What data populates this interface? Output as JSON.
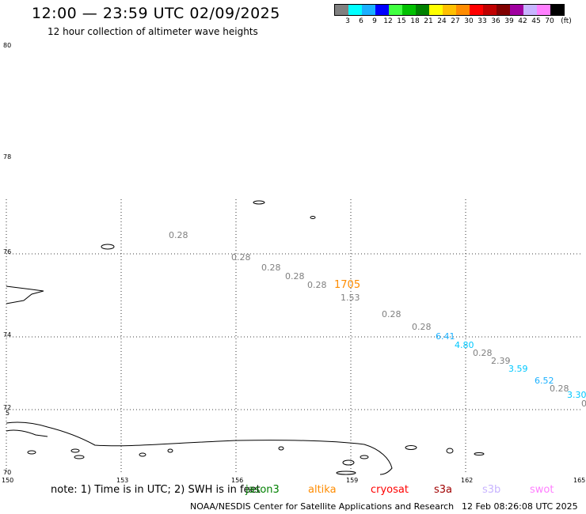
{
  "header": {
    "title": "12:00 — 23:59 UTC 02/09/2025",
    "subtitle": "12 hour collection of altimeter wave heights"
  },
  "scale": {
    "unit": "(ft)",
    "colors": [
      "#808080",
      "#00ffff",
      "#1ab0ff",
      "#0000ff",
      "#40ff40",
      "#00c000",
      "#008000",
      "#ffff00",
      "#ffc000",
      "#ff8c00",
      "#ff0000",
      "#c00000",
      "#800000",
      "#a000a0",
      "#c8b4ff",
      "#ff80ff",
      "#000000"
    ],
    "labels": [
      "3",
      "6",
      "9",
      "12",
      "15",
      "18",
      "21",
      "24",
      "27",
      "30",
      "33",
      "36",
      "39",
      "42",
      "45",
      "70"
    ]
  },
  "axes": {
    "lat_labels": [
      "80",
      "78",
      "76",
      "74",
      "72",
      "70"
    ],
    "lon_labels": [
      "150",
      "153",
      "156",
      "159",
      "162",
      "165"
    ]
  },
  "observations": [
    {
      "text": "0.28",
      "color": "#808080"
    },
    {
      "text": "0.28",
      "color": "#808080"
    },
    {
      "text": "0.28",
      "color": "#808080"
    },
    {
      "text": "0.28",
      "color": "#808080"
    },
    {
      "text": "0.28",
      "color": "#808080"
    },
    {
      "text": "1705",
      "color": "#ff8c00"
    },
    {
      "text": "1.53",
      "color": "#808080"
    },
    {
      "text": "0.28",
      "color": "#808080"
    },
    {
      "text": "0.28",
      "color": "#808080"
    },
    {
      "text": "6.41",
      "color": "#1ab0ff"
    },
    {
      "text": "4.80",
      "color": "#00c8ff"
    },
    {
      "text": "0.28",
      "color": "#808080"
    },
    {
      "text": "2.39",
      "color": "#808080"
    },
    {
      "text": "3.59",
      "color": "#00c8ff"
    },
    {
      "text": "6.52",
      "color": "#1ab0ff"
    },
    {
      "text": "0.28",
      "color": "#808080"
    },
    {
      "text": "3.30",
      "color": "#00c8ff"
    },
    {
      "text": "0",
      "color": "#808080"
    }
  ],
  "edge_marks": {
    "left_small": "5"
  },
  "footer": {
    "note": "note:  1) Time is in UTC;  2) SWH is in feet",
    "satellites": [
      {
        "name": "jason3",
        "color": "#008000"
      },
      {
        "name": "altika",
        "color": "#ff8c00"
      },
      {
        "name": "cryosat",
        "color": "#ff0000"
      },
      {
        "name": "s3a",
        "color": "#a00000"
      },
      {
        "name": "s3b",
        "color": "#c8b4ff"
      },
      {
        "name": "swot",
        "color": "#ff80ff"
      }
    ],
    "credit": "NOAA/NESDIS Center for Satellite Applications and Research",
    "timestamp": "12 Feb 08:26:08 UTC 2025"
  }
}
